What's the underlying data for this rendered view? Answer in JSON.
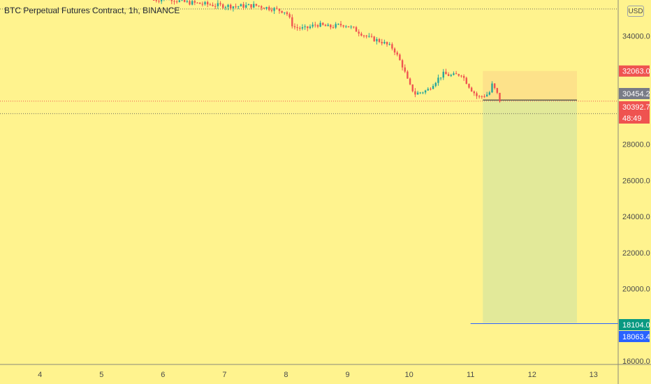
{
  "header": {
    "symbol_title": "BTC Perpetual Futures Contract, 1h, BINANCE",
    "currency": "USD"
  },
  "colors": {
    "background": "#fff38e",
    "bullish": "#26a69a",
    "bearish": "#ef5350",
    "profit_zone": "#dfe89a",
    "stop_zone": "#fde08a",
    "target_line": "#2962ff",
    "price_line": "#1f2431",
    "axis_border": "#8a8a7a"
  },
  "chart_data": {
    "type": "candlestick",
    "title": "BTC Perpetual Futures Contract, 1h, BINANCE",
    "x_tick_labels": [
      "4",
      "5",
      "6",
      "7",
      "8",
      "9",
      "10",
      "11",
      "12",
      "13"
    ],
    "y_tick_labels": [
      "34000.0",
      "28000.0",
      "26000.0",
      "24000.0",
      "22000.0",
      "20000.0",
      "16000.0"
    ],
    "y_ticks": [
      34000,
      28000,
      26000,
      24000,
      22000,
      20000,
      16000
    ],
    "ylim": [
      15800,
      36000
    ],
    "xlim": [
      3.35,
      13.4
    ],
    "price_path": [
      [
        5.85,
        36000
      ],
      [
        6.1,
        36100
      ],
      [
        6.3,
        35900
      ],
      [
        6.6,
        35800
      ],
      [
        6.9,
        35700
      ],
      [
        7.2,
        35650
      ],
      [
        7.5,
        35700
      ],
      [
        7.8,
        35500
      ],
      [
        8.0,
        35350
      ],
      [
        8.12,
        34500
      ],
      [
        8.3,
        34400
      ],
      [
        8.5,
        34650
      ],
      [
        8.7,
        34500
      ],
      [
        8.95,
        34650
      ],
      [
        9.15,
        34300
      ],
      [
        9.35,
        33900
      ],
      [
        9.55,
        33700
      ],
      [
        9.75,
        33300
      ],
      [
        9.9,
        32300
      ],
      [
        10.0,
        31300
      ],
      [
        10.1,
        30800
      ],
      [
        10.3,
        31000
      ],
      [
        10.4,
        31400
      ],
      [
        10.55,
        31900
      ],
      [
        10.7,
        31800
      ],
      [
        10.85,
        31900
      ],
      [
        11.0,
        31100
      ],
      [
        11.12,
        30600
      ],
      [
        11.3,
        30800
      ],
      [
        11.35,
        31300
      ],
      [
        11.42,
        30900
      ],
      [
        11.48,
        30400
      ]
    ],
    "position": {
      "type": "short",
      "entry": 30454.2,
      "stop": 32063.0,
      "target": 18104.0,
      "x_start": 11.2,
      "x_end": 12.73
    },
    "price_tags": [
      {
        "label": "32063.0",
        "value": 32063.0,
        "color": "#ef5350"
      },
      {
        "label": "30454.2",
        "value": 30454.2,
        "color": "#787b86"
      },
      {
        "label": "30392.7",
        "value": 30392.7,
        "color": "#ef5350",
        "sublabel": "48:49"
      },
      {
        "label": "18104.0",
        "value": 18104.0,
        "color": "#089981"
      },
      {
        "label": "18063.4",
        "value": 18063.4,
        "color": "#2962ff"
      }
    ],
    "horizontal_lines": [
      {
        "value": 35500,
        "style": "dotted",
        "color": "#6b6b5a"
      },
      {
        "value": 30392.7,
        "style": "dotted",
        "color": "#ef5350"
      },
      {
        "value": 29700,
        "style": "dotted",
        "color": "#6b6b5a"
      },
      {
        "value": 18063.4,
        "style": "solid",
        "color": "#2962ff",
        "x_start": 11.0
      }
    ]
  }
}
